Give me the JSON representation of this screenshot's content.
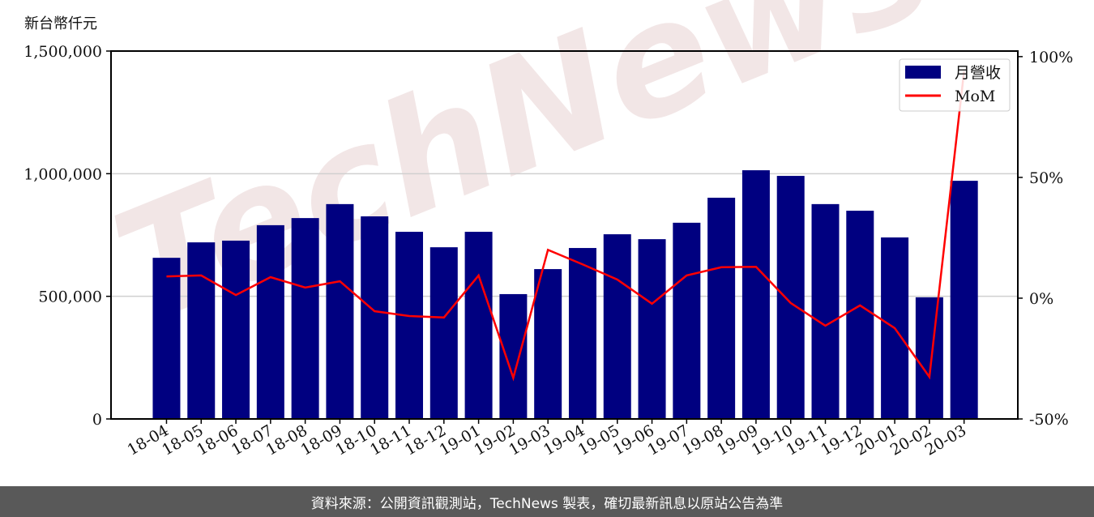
{
  "chart_data": {
    "type": "bar+line",
    "ylabel_left": "新台幣仟元",
    "categories": [
      "18-04",
      "18-05",
      "18-06",
      "18-07",
      "18-08",
      "18-09",
      "18-10",
      "18-11",
      "18-12",
      "19-01",
      "19-02",
      "19-03",
      "19-04",
      "19-05",
      "19-06",
      "19-07",
      "19-08",
      "19-09",
      "19-10",
      "19-11",
      "19-12",
      "20-01",
      "20-02",
      "20-03"
    ],
    "series": [
      {
        "name": "月營收",
        "type": "bar",
        "axis": "left",
        "color": "#000080",
        "values": [
          657000,
          720000,
          727000,
          790000,
          819000,
          876000,
          826000,
          763000,
          700000,
          763000,
          509000,
          611000,
          697000,
          753000,
          733000,
          800000,
          902000,
          1014000,
          991000,
          876000,
          849000,
          740000,
          496000,
          971000
        ]
      },
      {
        "name": "MoM",
        "type": "line",
        "axis": "right",
        "color": "#ff0000",
        "values": [
          9.0,
          9.4,
          1.3,
          8.7,
          4.4,
          7.0,
          -5.4,
          -7.4,
          -8.0,
          9.4,
          -33.0,
          20.0,
          14.0,
          7.7,
          -2.3,
          9.4,
          12.8,
          13.0,
          -2.0,
          -11.4,
          -3.0,
          -12.4,
          -32.6,
          94.0
        ]
      }
    ],
    "left_axis": {
      "ylim": [
        0,
        1500000
      ],
      "ticks": [
        0,
        500000,
        1000000,
        1500000
      ],
      "tick_labels": [
        "0",
        "500,000",
        "1,000,000",
        "1,500,000"
      ]
    },
    "right_axis": {
      "ylim": [
        -50,
        102.3
      ],
      "ticks": [
        -50,
        0,
        50,
        100
      ],
      "tick_labels": [
        "-50%",
        "0%",
        "50%",
        "100%"
      ]
    },
    "grid": "horizontal",
    "legend": "top-right"
  },
  "watermark": "TechNews",
  "footer": "資料來源：公開資訊觀測站，TechNews 製表，確切最新訊息以原站公告為準"
}
